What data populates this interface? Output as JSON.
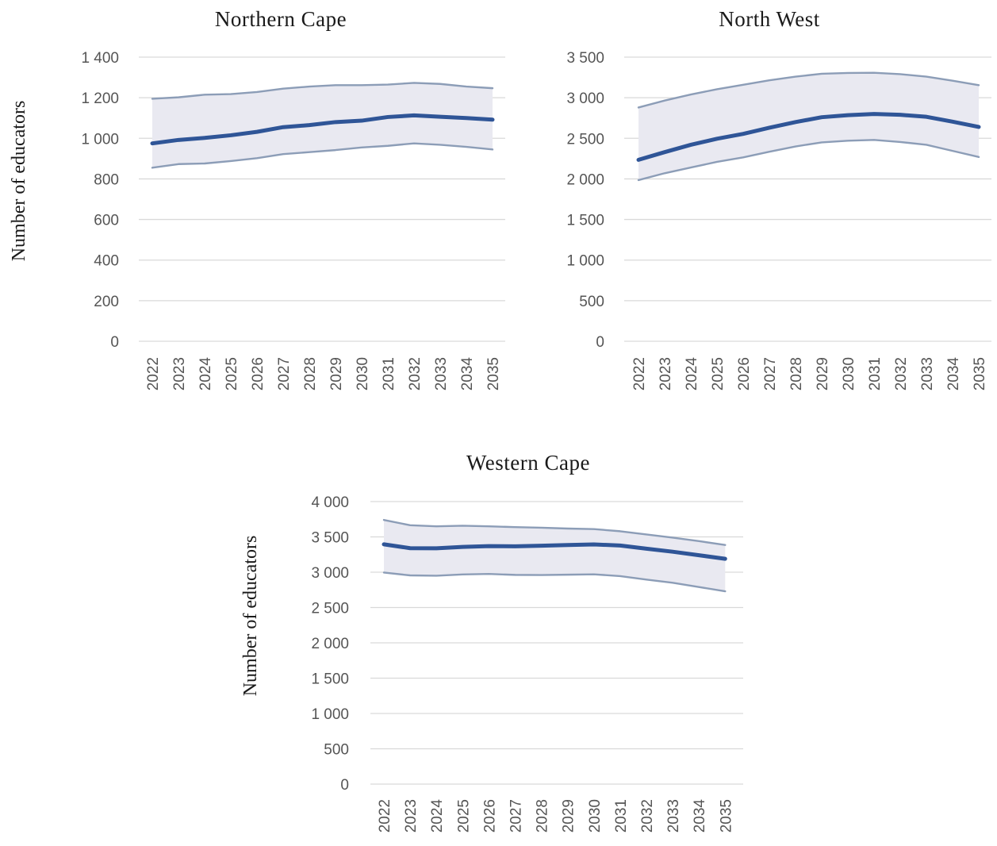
{
  "colors": {
    "band_fill": "#e9e9f1",
    "bound_line": "#8c9db7",
    "central_line": "#2f5597",
    "grid": "#d9d9d9",
    "tick_text": "#555555"
  },
  "chart_data": [
    {
      "type": "line",
      "title": "Northern Cape",
      "ylabel": "Number of educators",
      "ylim": [
        0,
        1400
      ],
      "yticks": [
        0,
        200,
        400,
        600,
        800,
        1000,
        1200,
        1400
      ],
      "ytick_labels": [
        "0",
        "200",
        "400",
        "600",
        "800",
        "1 000",
        "1 200",
        "1 400"
      ],
      "x": [
        "2022",
        "2023",
        "2024",
        "2025",
        "2026",
        "2027",
        "2028",
        "2029",
        "2030",
        "2031",
        "2032",
        "2033",
        "2034",
        "2035"
      ],
      "series": [
        {
          "role": "upper",
          "values": [
            1195,
            1202,
            1215,
            1218,
            1228,
            1245,
            1255,
            1262,
            1262,
            1265,
            1273,
            1268,
            1255,
            1247
          ]
        },
        {
          "role": "central",
          "values": [
            975,
            992,
            1002,
            1015,
            1032,
            1055,
            1065,
            1080,
            1087,
            1105,
            1113,
            1106,
            1100,
            1092
          ]
        },
        {
          "role": "lower",
          "values": [
            855,
            873,
            876,
            888,
            902,
            922,
            932,
            942,
            955,
            963,
            975,
            968,
            958,
            945
          ]
        }
      ],
      "grid": true
    },
    {
      "type": "line",
      "title": "North West",
      "ylabel": "",
      "ylim": [
        0,
        3500
      ],
      "yticks": [
        0,
        500,
        1000,
        1500,
        2000,
        2500,
        3000,
        3500
      ],
      "ytick_labels": [
        "0",
        "500",
        "1 000",
        "1 500",
        "2 000",
        "2 500",
        "3 000",
        "3 500"
      ],
      "x": [
        "2022",
        "2023",
        "2024",
        "2025",
        "2026",
        "2027",
        "2028",
        "2029",
        "2030",
        "2031",
        "2032",
        "2033",
        "2034",
        "2035"
      ],
      "series": [
        {
          "role": "upper",
          "values": [
            2880,
            2965,
            3040,
            3105,
            3160,
            3215,
            3260,
            3295,
            3305,
            3308,
            3290,
            3260,
            3210,
            3155
          ]
        },
        {
          "role": "central",
          "values": [
            2235,
            2330,
            2420,
            2495,
            2555,
            2630,
            2700,
            2760,
            2785,
            2800,
            2790,
            2765,
            2705,
            2640
          ]
        },
        {
          "role": "lower",
          "values": [
            1985,
            2070,
            2140,
            2210,
            2265,
            2335,
            2400,
            2450,
            2470,
            2480,
            2455,
            2420,
            2345,
            2270
          ]
        }
      ],
      "grid": true
    },
    {
      "type": "line",
      "title": "Western Cape",
      "ylabel": "Number of educators",
      "ylim": [
        0,
        4000
      ],
      "yticks": [
        0,
        500,
        1000,
        1500,
        2000,
        2500,
        3000,
        3500,
        4000
      ],
      "ytick_labels": [
        "0",
        "500",
        "1 000",
        "1 500",
        "2 000",
        "2 500",
        "3 000",
        "3 500",
        "4 000"
      ],
      "x": [
        "2022",
        "2023",
        "2024",
        "2025",
        "2026",
        "2027",
        "2028",
        "2029",
        "2030",
        "2031",
        "2032",
        "2033",
        "2034",
        "2035"
      ],
      "series": [
        {
          "role": "upper",
          "values": [
            3740,
            3665,
            3650,
            3658,
            3650,
            3638,
            3630,
            3618,
            3610,
            3580,
            3535,
            3490,
            3440,
            3385
          ]
        },
        {
          "role": "central",
          "values": [
            3395,
            3340,
            3338,
            3358,
            3370,
            3366,
            3375,
            3385,
            3393,
            3378,
            3333,
            3290,
            3240,
            3190
          ]
        },
        {
          "role": "lower",
          "values": [
            2995,
            2955,
            2950,
            2968,
            2975,
            2962,
            2960,
            2965,
            2970,
            2945,
            2895,
            2850,
            2790,
            2730
          ]
        }
      ],
      "grid": true
    }
  ]
}
